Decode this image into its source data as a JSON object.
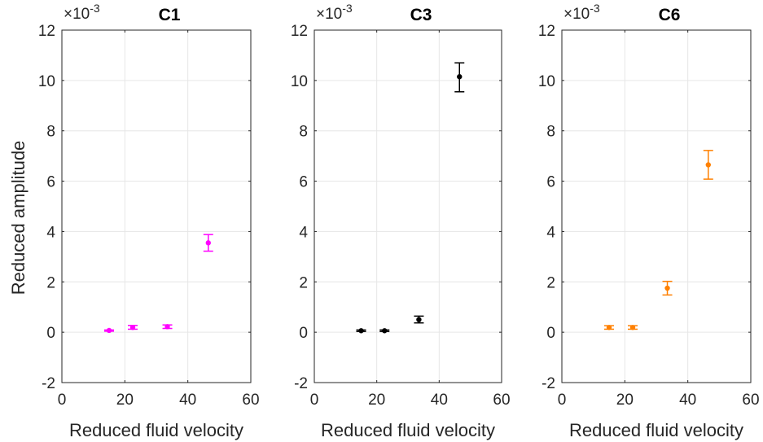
{
  "chart_data": [
    {
      "type": "scatter",
      "title": "C1",
      "xlabel": "Reduced fluid velocity",
      "ylabel": "Reduced amplitude",
      "exponent_label": "×10",
      "exponent": "-3",
      "xlim": [
        0,
        60
      ],
      "ylim": [
        -2,
        12
      ],
      "xticks": [
        "0",
        "20",
        "40",
        "60"
      ],
      "yticks": [
        "-2",
        "0",
        "2",
        "4",
        "6",
        "8",
        "10",
        "12"
      ],
      "grid": true,
      "color": "#ff00ff",
      "points": [
        {
          "x": 15,
          "y": 0.07,
          "err_low": 0.04,
          "err_high": 0.09
        },
        {
          "x": 22.5,
          "y": 0.19,
          "err_low": 0.12,
          "err_high": 0.27
        },
        {
          "x": 33.5,
          "y": 0.22,
          "err_low": 0.15,
          "err_high": 0.29
        },
        {
          "x": 46.5,
          "y": 3.55,
          "err_low": 3.22,
          "err_high": 3.88
        }
      ]
    },
    {
      "type": "scatter",
      "title": "C3",
      "xlabel": "Reduced fluid velocity",
      "ylabel": "",
      "exponent_label": "×10",
      "exponent": "-3",
      "xlim": [
        0,
        60
      ],
      "ylim": [
        -2,
        12
      ],
      "xticks": [
        "0",
        "20",
        "40",
        "60"
      ],
      "yticks": [
        "-2",
        "0",
        "2",
        "4",
        "6",
        "8",
        "10",
        "12"
      ],
      "grid": true,
      "color": "#000000",
      "points": [
        {
          "x": 15,
          "y": 0.06,
          "err_low": 0.03,
          "err_high": 0.09
        },
        {
          "x": 22.5,
          "y": 0.06,
          "err_low": 0.03,
          "err_high": 0.09
        },
        {
          "x": 33.5,
          "y": 0.5,
          "err_low": 0.37,
          "err_high": 0.64
        },
        {
          "x": 46.5,
          "y": 10.15,
          "err_low": 9.55,
          "err_high": 10.7
        }
      ]
    },
    {
      "type": "scatter",
      "title": "C6",
      "xlabel": "Reduced fluid velocity",
      "ylabel": "",
      "exponent_label": "×10",
      "exponent": "-3",
      "xlim": [
        0,
        60
      ],
      "ylim": [
        -2,
        12
      ],
      "xticks": [
        "0",
        "20",
        "40",
        "60"
      ],
      "yticks": [
        "-2",
        "0",
        "2",
        "4",
        "6",
        "8",
        "10",
        "12"
      ],
      "grid": true,
      "color": "#ff8000",
      "points": [
        {
          "x": 15,
          "y": 0.19,
          "err_low": 0.12,
          "err_high": 0.26
        },
        {
          "x": 22.5,
          "y": 0.19,
          "err_low": 0.12,
          "err_high": 0.26
        },
        {
          "x": 33.5,
          "y": 1.75,
          "err_low": 1.48,
          "err_high": 2.02
        },
        {
          "x": 46.5,
          "y": 6.65,
          "err_low": 6.08,
          "err_high": 7.22
        }
      ]
    }
  ]
}
